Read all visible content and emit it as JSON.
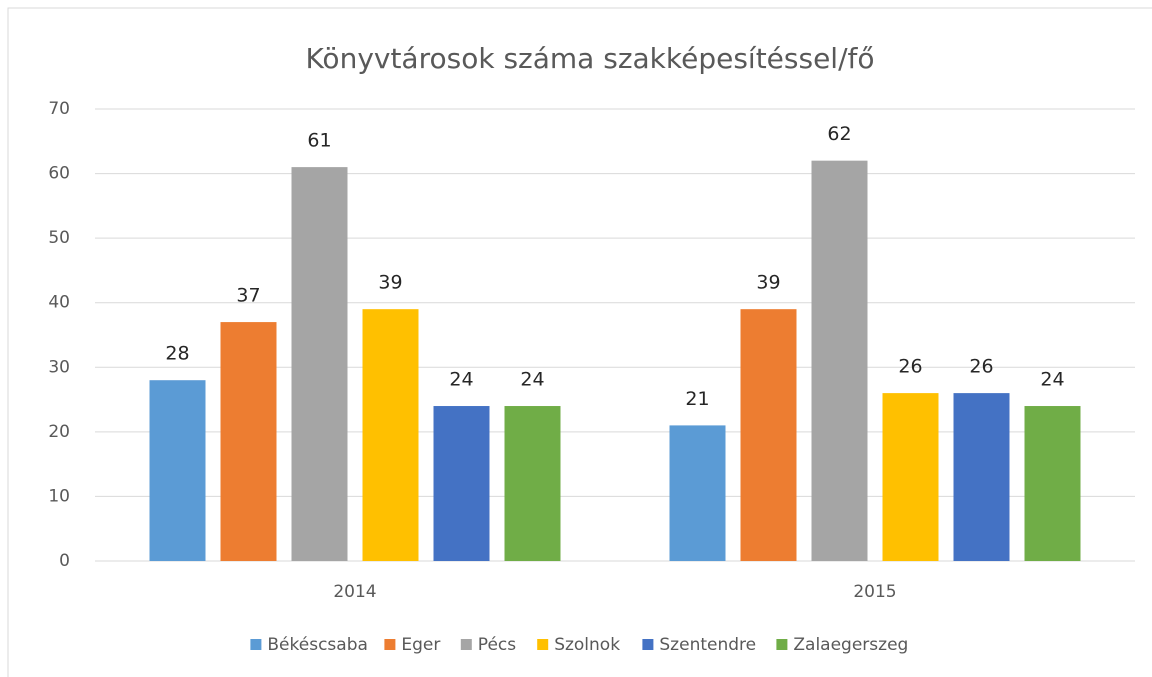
{
  "chart_data": {
    "type": "bar",
    "title": "Könyvtárosok száma szakképesítéssel/fő",
    "categories": [
      "2014",
      "2015"
    ],
    "series": [
      {
        "name": "Békéscsaba",
        "color": "#5b9bd5",
        "values": [
          28,
          21
        ]
      },
      {
        "name": "Eger",
        "color": "#ed7d31",
        "values": [
          37,
          39
        ]
      },
      {
        "name": "Pécs",
        "color": "#a5a5a5",
        "values": [
          61,
          62
        ]
      },
      {
        "name": "Szolnok",
        "color": "#ffc000",
        "values": [
          39,
          26
        ]
      },
      {
        "name": "Szentendre",
        "color": "#4472c4",
        "values": [
          24,
          26
        ]
      },
      {
        "name": "Zalaegerszeg",
        "color": "#70ad47",
        "values": [
          24,
          24
        ]
      }
    ],
    "ylim": [
      0,
      70
    ],
    "yticks": [
      0,
      10,
      20,
      30,
      40,
      50,
      60,
      70
    ],
    "grid": true,
    "legend": "bottom"
  }
}
